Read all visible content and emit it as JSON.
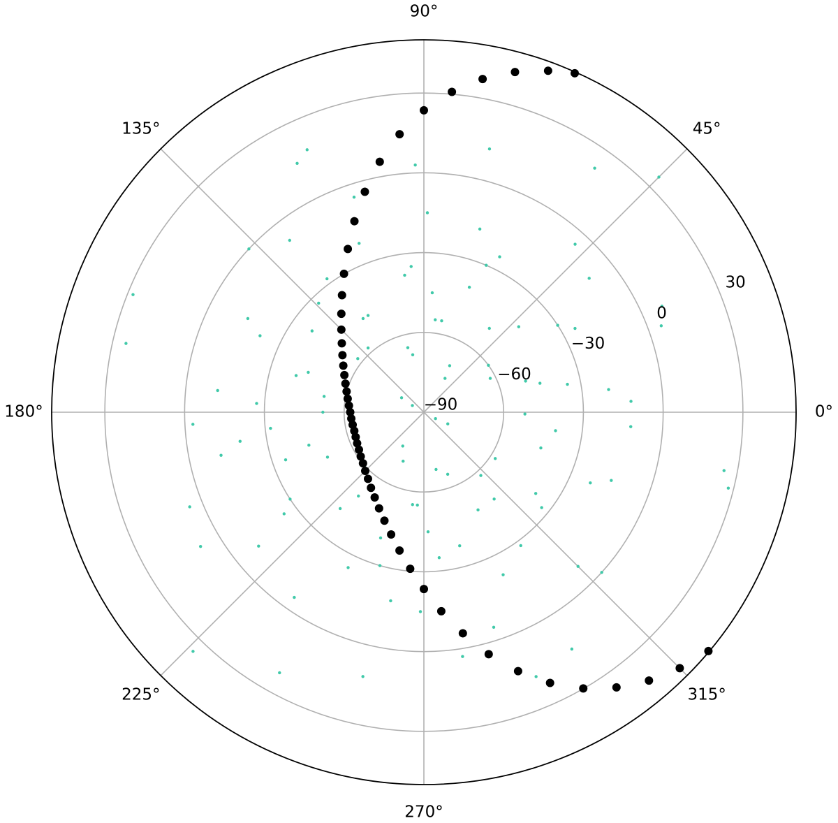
{
  "chart_data": {
    "type": "polar-scatter",
    "xticks": [
      {
        "value": 0,
        "label": "0°"
      },
      {
        "value": 45,
        "label": "45°"
      },
      {
        "value": 90,
        "label": "90°"
      },
      {
        "value": 135,
        "label": "135°"
      },
      {
        "value": 180,
        "label": "180°"
      },
      {
        "value": 225,
        "label": "225°"
      },
      {
        "value": 270,
        "label": "270°"
      },
      {
        "value": 315,
        "label": "315°"
      }
    ],
    "ylim": [
      -90,
      50
    ],
    "yticks": [
      {
        "value": -90,
        "label": "−90"
      },
      {
        "value": -60,
        "label": "−60"
      },
      {
        "value": -30,
        "label": "−30"
      },
      0,
      30
    ],
    "grid": true,
    "series": [
      {
        "color": "#40c9a9",
        "marker_size": 2.2,
        "x": [
          3,
          11,
          17,
          24,
          29,
          36,
          42,
          48,
          55,
          61,
          67,
          73,
          79,
          86,
          92,
          98,
          104,
          111,
          117,
          123,
          128,
          134,
          141,
          147,
          152,
          158,
          164,
          171,
          177,
          183,
          189,
          196,
          202,
          208,
          213,
          219,
          226,
          232,
          238,
          244,
          251,
          257,
          263,
          269,
          276,
          282,
          288,
          293,
          299,
          306,
          312,
          318,
          324,
          331,
          337,
          343,
          349,
          356,
          7,
          14,
          20,
          27,
          33,
          39,
          45,
          52,
          58,
          64,
          70,
          76,
          83,
          89,
          95,
          101,
          108,
          114,
          120,
          126,
          131,
          137,
          144,
          150,
          155,
          161,
          167,
          174,
          180,
          186,
          192,
          199,
          205,
          211,
          216,
          222,
          229,
          235,
          241,
          247,
          254,
          260,
          266,
          272,
          279,
          285,
          291,
          296,
          302,
          309,
          315,
          321,
          327,
          334,
          340,
          346,
          352,
          359
        ],
        "values": [
          -12,
          -35,
          -50,
          8,
          -25,
          -60,
          -42,
          -5,
          22,
          -70,
          -30,
          -18,
          -55,
          -45,
          3,
          -38,
          -65,
          -22,
          15,
          -48,
          -8,
          -33,
          -58,
          -80,
          -15,
          28,
          -40,
          -52,
          -27,
          -3,
          -20,
          -45,
          5,
          -62,
          -30,
          -10,
          35,
          -50,
          -75,
          -25,
          -40,
          12,
          -55,
          -15,
          -35,
          -68,
          -5,
          18,
          -48,
          -28,
          -58,
          0,
          -38,
          -85,
          -22,
          -44,
          25,
          -12,
          -20,
          -45,
          5,
          -62,
          -30,
          -10,
          35,
          -50,
          -75,
          -25,
          -40,
          12,
          -55,
          -15,
          -35,
          -68,
          -5,
          18,
          -48,
          -28,
          -58,
          0,
          -38,
          -85,
          -22,
          -44,
          25,
          -12,
          -52,
          -32,
          -12,
          -35,
          -50,
          8,
          -25,
          -60,
          -42,
          -5,
          22,
          -70,
          -30,
          -18,
          -55,
          -45,
          3,
          -38,
          -65,
          -22,
          15,
          -48,
          -8,
          -33,
          -58,
          -80,
          -15,
          28,
          -40,
          -52
        ]
      },
      {
        "color": "#000000",
        "marker_size": 6,
        "x": [
          66,
          70,
          75,
          80,
          85,
          90,
          95,
          100,
          105,
          110,
          115,
          120,
          125,
          130,
          135,
          140,
          145,
          150,
          155,
          160,
          165,
          170,
          175,
          180,
          185,
          190,
          195,
          200,
          205,
          210,
          215,
          220,
          225,
          230,
          235,
          240,
          245,
          250,
          255,
          260,
          265,
          270,
          275,
          280,
          285,
          290,
          295,
          300,
          305,
          310,
          315,
          320
        ],
        "values": [
          49.5,
          46.6,
          42.4,
          37.2,
          30.9,
          23.5,
          14.9,
          5.6,
          -4.2,
          -13.6,
          -22.3,
          -29.9,
          -36.3,
          -41.7,
          -46.1,
          -49.7,
          -52.6,
          -55.0,
          -57.0,
          -58.6,
          -59.9,
          -60.9,
          -61.7,
          -62.3,
          -62.6,
          -62.8,
          -62.9,
          -62.7,
          -62.3,
          -61.8,
          -61.0,
          -60.1,
          -58.8,
          -57.3,
          -55.3,
          -53.0,
          -50.1,
          -46.6,
          -42.4,
          -37.2,
          -30.9,
          -23.5,
          -14.9,
          -5.6,
          4.2,
          13.6,
          22.3,
          29.9,
          36.3,
          41.7,
          46.1,
          49.7
        ]
      }
    ]
  }
}
